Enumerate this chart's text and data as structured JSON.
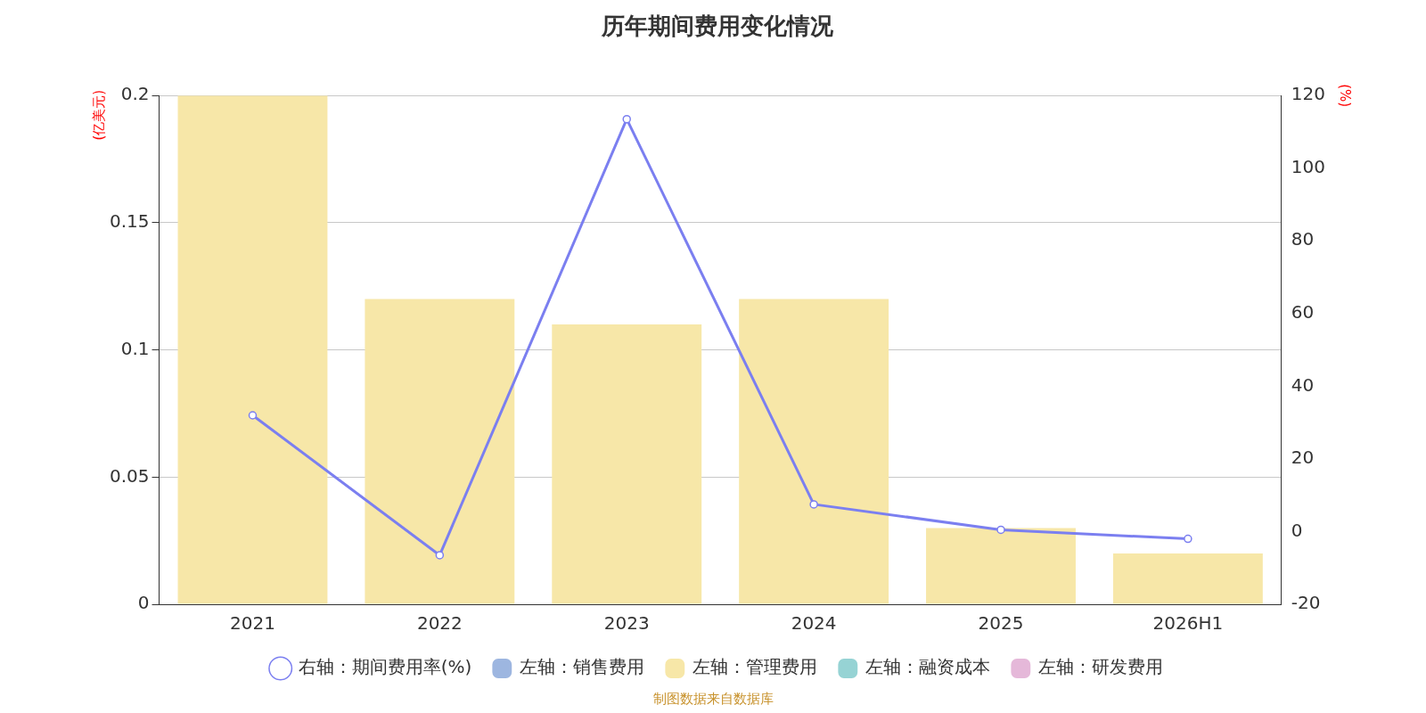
{
  "chart_data": {
    "type": "bar",
    "title": "历年期间费用变化情况",
    "categories": [
      "2021",
      "2022",
      "2023",
      "2024",
      "2025",
      "2026H1"
    ],
    "series": [
      {
        "name": "左轴：销售费用",
        "color": "#9db6e0",
        "values": [
          null,
          null,
          null,
          null,
          null,
          null
        ]
      },
      {
        "name": "左轴：管理费用",
        "color": "#f7e7a8",
        "values": [
          0.2,
          0.12,
          0.11,
          0.12,
          0.03,
          0.02
        ]
      },
      {
        "name": "左轴：融资成本",
        "color": "#96d3d4",
        "values": [
          null,
          null,
          null,
          null,
          null,
          null
        ]
      },
      {
        "name": "左轴：研发费用",
        "color": "#e5b8d9",
        "values": [
          null,
          null,
          null,
          null,
          null,
          null
        ]
      },
      {
        "name": "右轴：期间费用率(%)",
        "type": "line",
        "axis": "y2",
        "color": "#7b7ff0",
        "values": [
          32,
          -6.5,
          113.5,
          7.5,
          0.5,
          -2
        ]
      }
    ],
    "stacked": true,
    "ylabel": "(亿美元)",
    "y2label": "(%)",
    "ylim": [
      0,
      0.2
    ],
    "yticks": [
      0,
      0.05,
      0.1,
      0.15,
      0.2
    ],
    "y2lim": [
      -20,
      120
    ],
    "y2ticks": [
      -20,
      0,
      20,
      40,
      60,
      80,
      100,
      120
    ],
    "grid": "y",
    "legend": "bottom",
    "marker": "circle",
    "line_style": "solid",
    "annotations": [
      "制图数据来自数据库"
    ]
  }
}
